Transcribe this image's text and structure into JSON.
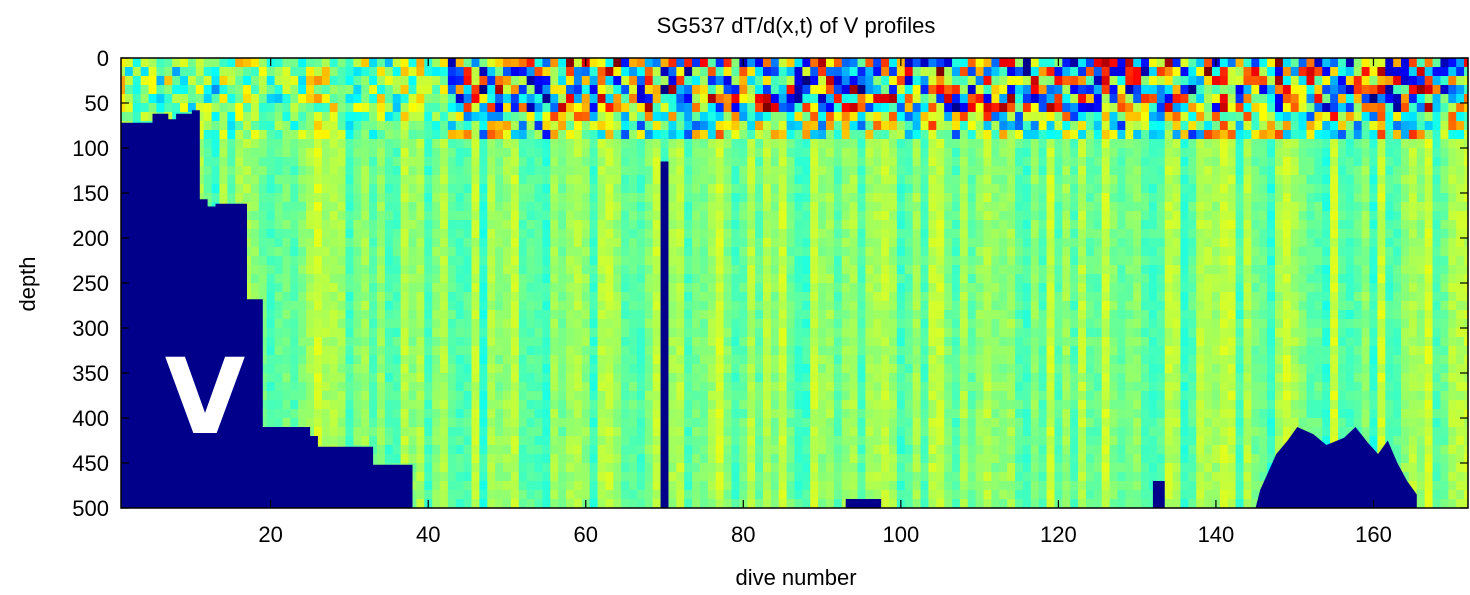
{
  "chart_data": {
    "type": "heatmap",
    "title": "SG537 dT/d(x,t) of V profiles",
    "xlabel": "dive number",
    "ylabel": "depth",
    "xlim": [
      1,
      172
    ],
    "ylim": [
      500,
      0
    ],
    "x_ticks": [
      20,
      40,
      60,
      80,
      100,
      120,
      140,
      160
    ],
    "y_ticks": [
      0,
      50,
      100,
      150,
      200,
      250,
      300,
      350,
      400,
      450,
      500
    ],
    "colormap": "jet",
    "colors": {
      "masked": "#00008b",
      "background_field": "#7fff7f",
      "annotation_text": "#ffffff"
    },
    "annotation": "V",
    "masked_depth_limit_by_dive": [
      {
        "dive": 1,
        "depth": 72
      },
      {
        "dive": 5,
        "depth": 62
      },
      {
        "dive": 7,
        "depth": 68
      },
      {
        "dive": 8,
        "depth": 62
      },
      {
        "dive": 10,
        "depth": 58
      },
      {
        "dive": 11,
        "depth": 157
      },
      {
        "dive": 12,
        "depth": 165
      },
      {
        "dive": 13,
        "depth": 162
      },
      {
        "dive": 17,
        "depth": 268
      },
      {
        "dive": 19,
        "depth": 410
      },
      {
        "dive": 25,
        "depth": 420
      },
      {
        "dive": 26,
        "depth": 432
      },
      {
        "dive": 33,
        "depth": 452
      },
      {
        "dive": 38,
        "depth": 500
      }
    ],
    "masked_column_dive": 70,
    "masked_column_top_depth": 115,
    "masked_bumps": [
      {
        "dive_start": 93,
        "dive_end": 97,
        "top_depth": 490
      },
      {
        "dive_start": 132,
        "dive_end": 133,
        "top_depth": 470
      },
      {
        "dive_start": 145,
        "dive_end": 165,
        "top_depth": 410
      }
    ]
  }
}
